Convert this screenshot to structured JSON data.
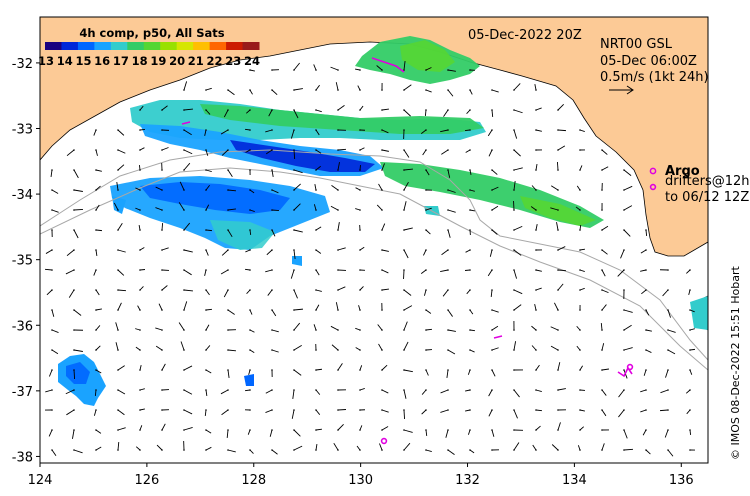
{
  "map": {
    "date_label": "05-Dec-2022 20Z",
    "product": {
      "line1": "NRT00 GSL",
      "line2": "05-Dec 06:00Z",
      "line3": "0.5m/s (1kt 24h)"
    },
    "argo_label": "Argo",
    "drifters_line1": "drifters@12h",
    "drifters_line2": "to 06/12 12Z",
    "credit": "© IMOS 08-Dec-2022 15:51 Hobart",
    "colorbar": {
      "title": "4h comp, p50, All Sats",
      "ticks": [
        "13",
        "14",
        "15",
        "16",
        "17",
        "18",
        "19",
        "20",
        "21",
        "22",
        "23",
        "24"
      ],
      "colors": [
        "#1a0080",
        "#0026d9",
        "#0066ff",
        "#1aa3ff",
        "#33cccc",
        "#33cc66",
        "#55d633",
        "#99e000",
        "#d6e600",
        "#ffbf00",
        "#ff6600",
        "#cc1a00",
        "#991a1a"
      ]
    },
    "axes": {
      "x_ticks": [
        "124",
        "126",
        "128",
        "130",
        "132",
        "134",
        "136"
      ],
      "y_ticks": [
        "-32",
        "-33",
        "-34",
        "-35",
        "-36",
        "-37",
        "-38"
      ],
      "x_values": [
        124,
        126,
        128,
        130,
        132,
        134,
        136
      ],
      "y_values": [
        -32,
        -33,
        -34,
        -35,
        -36,
        -37,
        -38
      ],
      "lon_range": [
        124,
        136.5
      ],
      "lat_range": [
        -38.1,
        -31.3
      ]
    },
    "colors": {
      "land": "#fcca96",
      "sea": "#ffffff",
      "argo": "#e000e0",
      "contour": "#a8a8a8"
    }
  }
}
